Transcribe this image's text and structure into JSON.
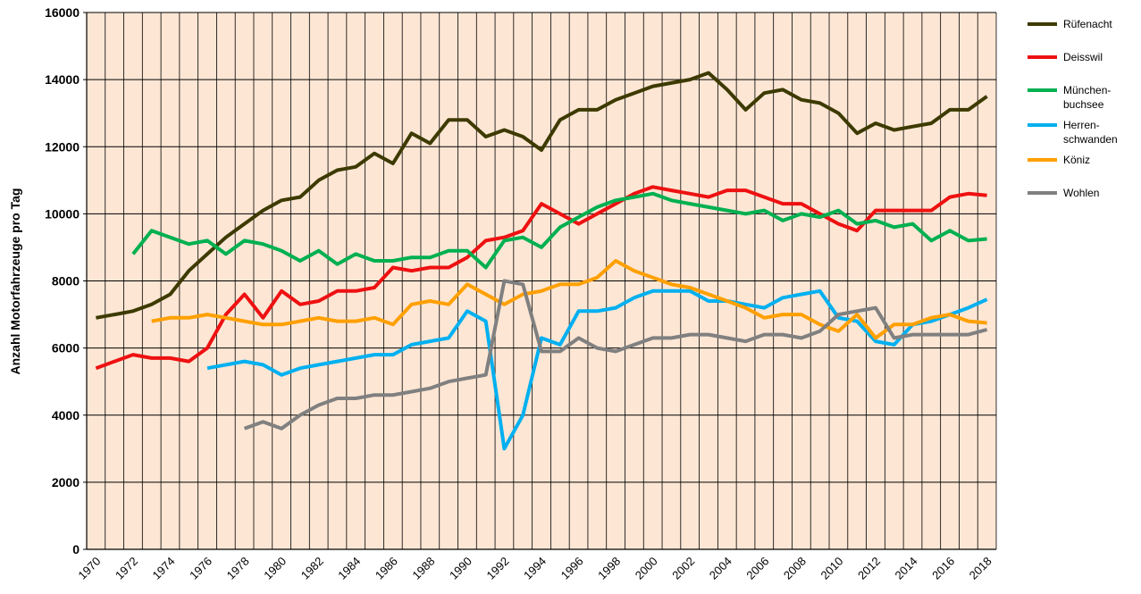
{
  "chart_data": {
    "type": "line",
    "y_label": "Anzahl Motorfahrzeuge pro Tag",
    "categories": [
      "1970",
      null,
      "1972",
      null,
      "1974",
      null,
      "1976",
      null,
      "1978",
      null,
      "1980",
      null,
      "1982",
      null,
      "1984",
      null,
      "1986",
      null,
      "1988",
      null,
      "1990",
      null,
      "1992",
      null,
      "1994",
      null,
      "1996",
      null,
      "1998",
      null,
      "2000",
      null,
      "2002",
      null,
      "2004",
      null,
      "2006",
      null,
      "2008",
      null,
      "2010",
      null,
      "2012",
      null,
      "2014",
      null,
      "2016",
      null,
      "2018"
    ],
    "ylim": [
      0,
      16000
    ],
    "yticks": [
      0,
      2000,
      4000,
      6000,
      8000,
      10000,
      12000,
      14000,
      16000
    ],
    "grid": true,
    "legend": "right",
    "series": [
      {
        "name": "Rüfenacht",
        "color": "#3d3a00",
        "values": [
          6900,
          7000,
          7100,
          7300,
          7600,
          8300,
          8800,
          9300,
          9700,
          10100,
          10400,
          10500,
          11000,
          11300,
          11400,
          11800,
          11500,
          12400,
          12100,
          12800,
          12800,
          12300,
          12500,
          12300,
          11900,
          12800,
          13100,
          13100,
          13400,
          13600,
          13800,
          13900,
          14000,
          14200,
          13700,
          13100,
          13600,
          13700,
          13400,
          13300,
          13000,
          12400,
          12700,
          12500,
          12600,
          12700,
          13100,
          13100,
          13500
        ]
      },
      {
        "name": "Deisswil",
        "color": "#ee1111",
        "values": [
          5400,
          5600,
          5800,
          5700,
          5700,
          5600,
          6000,
          7000,
          7600,
          6900,
          7700,
          7300,
          7400,
          7700,
          7700,
          7800,
          8400,
          8300,
          8400,
          8400,
          8700,
          9200,
          9300,
          9500,
          10300,
          10000,
          9700,
          10000,
          10300,
          10600,
          10800,
          10700,
          10600,
          10500,
          10700,
          10700,
          10500,
          10300,
          10300,
          10000,
          9700,
          9500,
          10100,
          10100,
          10100,
          10100,
          10500,
          10600,
          10550
        ]
      },
      {
        "name": "München-buchsee",
        "color": "#00b050",
        "values": [
          null,
          null,
          8800,
          9500,
          9300,
          9100,
          9200,
          8800,
          9200,
          9100,
          8900,
          8600,
          8900,
          8500,
          8800,
          8600,
          8600,
          8700,
          8700,
          8900,
          8900,
          8400,
          9200,
          9300,
          9000,
          9600,
          9900,
          10200,
          10400,
          10500,
          10600,
          10400,
          10300,
          10200,
          10100,
          10000,
          10100,
          9800,
          10000,
          9900,
          10100,
          9700,
          9800,
          9600,
          9700,
          9200,
          9500,
          9200,
          9250
        ]
      },
      {
        "name": "Herren-schwanden",
        "color": "#00b0f0",
        "values": [
          null,
          null,
          null,
          null,
          null,
          null,
          5400,
          5500,
          5600,
          5500,
          5200,
          5400,
          5500,
          5600,
          5700,
          5800,
          5800,
          6100,
          6200,
          6300,
          7100,
          6800,
          3000,
          4000,
          6300,
          6100,
          7100,
          7100,
          7200,
          7500,
          7700,
          7700,
          7700,
          7400,
          7400,
          7300,
          7200,
          7500,
          7600,
          7700,
          6900,
          6800,
          6200,
          6100,
          6700,
          6800,
          7000,
          7200,
          7450
        ]
      },
      {
        "name": "Köniz",
        "color": "#ffa000",
        "values": [
          null,
          null,
          null,
          6800,
          6900,
          6900,
          7000,
          6900,
          6800,
          6700,
          6700,
          6800,
          6900,
          6800,
          6800,
          6900,
          6700,
          7300,
          7400,
          7300,
          7900,
          7600,
          7300,
          7600,
          7700,
          7900,
          7900,
          8100,
          8600,
          8300,
          8100,
          7900,
          7800,
          7600,
          7400,
          7200,
          6900,
          7000,
          7000,
          6700,
          6500,
          7000,
          6300,
          6700,
          6700,
          6900,
          7000,
          6800,
          6750
        ]
      },
      {
        "name": "Wohlen",
        "color": "#808080",
        "values": [
          null,
          null,
          null,
          null,
          null,
          null,
          null,
          null,
          3600,
          3800,
          3600,
          4000,
          4300,
          4500,
          4500,
          4600,
          4600,
          4700,
          4800,
          5000,
          5100,
          5200,
          8000,
          7900,
          5900,
          5900,
          6300,
          6000,
          5900,
          6100,
          6300,
          6300,
          6400,
          6400,
          6300,
          6200,
          6400,
          6400,
          6300,
          6500,
          7000,
          7100,
          7200,
          6300,
          6400,
          6400,
          6400,
          6400,
          6550
        ]
      }
    ]
  }
}
